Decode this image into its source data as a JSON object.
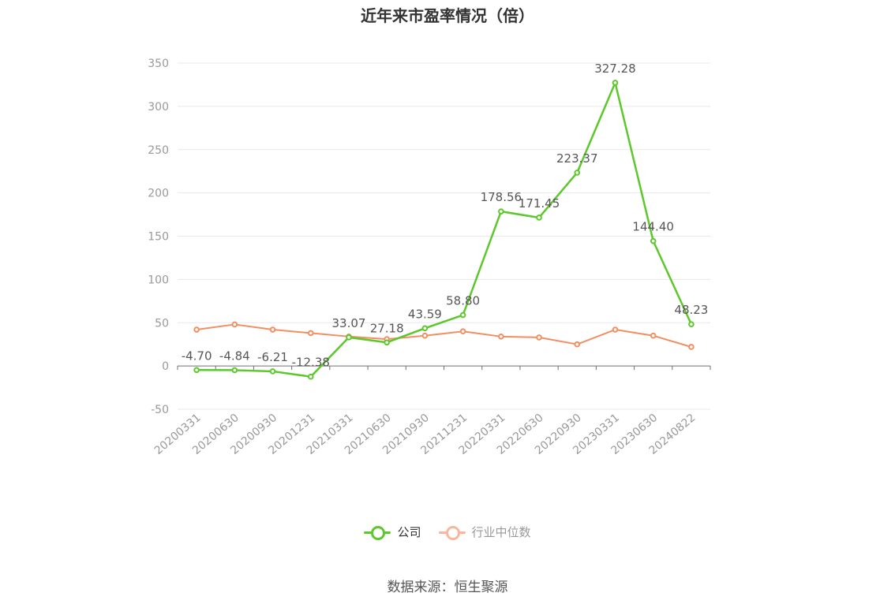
{
  "title": "近年来市盈率情况（倍）",
  "source": "数据来源：恒生聚源",
  "colors": {
    "company": "#5cc82b",
    "industry": "#f28e61",
    "industry_legend": "#f8b79c",
    "grid": "#e6e8ef",
    "axis_label": "#999999",
    "data_label": "#555555"
  },
  "legend": [
    {
      "label": "公司",
      "color": "#5cc82b"
    },
    {
      "label": "行业中位数",
      "color": "#f8b79c"
    }
  ],
  "chart_data": {
    "type": "line",
    "title": "近年来市盈率情况（倍）",
    "xlabel": "",
    "ylabel": "",
    "ylim": [
      -50,
      350
    ],
    "yticks": [
      -50,
      0,
      50,
      100,
      150,
      200,
      250,
      300,
      350
    ],
    "grid": true,
    "legend_position": "bottom",
    "categories": [
      "20200331",
      "20200630",
      "20200930",
      "20201231",
      "20210331",
      "20210630",
      "20210930",
      "20211231",
      "20220331",
      "20220630",
      "20220930",
      "20230331",
      "20230630",
      "20240822"
    ],
    "series": [
      {
        "name": "公司",
        "values": [
          -4.7,
          -4.84,
          -6.21,
          -12.38,
          33.07,
          27.18,
          43.59,
          58.8,
          178.56,
          171.45,
          223.37,
          327.28,
          144.4,
          48.23
        ],
        "labels": [
          "-4.70",
          "-4.84",
          "-6.21",
          "-12.38",
          "33.07",
          "27.18",
          "43.59",
          "58.80",
          "178.56",
          "171.45",
          "223.37",
          "327.28",
          "144.40",
          "48.23"
        ]
      },
      {
        "name": "行业中位数",
        "values": [
          42,
          48,
          42,
          38,
          34,
          31,
          35,
          40,
          34,
          33,
          25,
          42,
          35,
          22
        ]
      }
    ]
  }
}
